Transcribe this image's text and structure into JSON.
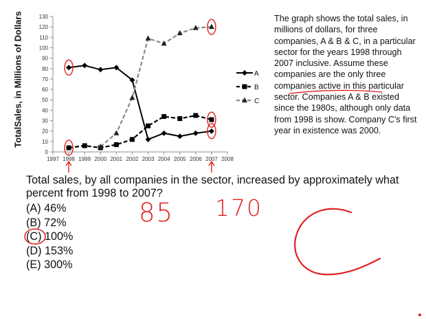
{
  "chart_data": {
    "type": "line",
    "title": "",
    "ylabel": "TotalSales, in Millions of Dollars",
    "xlabel": "",
    "xlim": [
      1997,
      2008
    ],
    "ylim": [
      0,
      130
    ],
    "y_ticks": [
      "0",
      "10",
      "20",
      "30",
      "40",
      "50",
      "60",
      "70",
      "80",
      "90",
      "100",
      "110",
      "120",
      "130"
    ],
    "x_ticks": [
      "1997",
      "1998",
      "1999",
      "2000",
      "2001",
      "2002",
      "2003",
      "2004",
      "2005",
      "2006",
      "2007",
      "2008"
    ],
    "grid": false,
    "legend_placement": "right",
    "series": [
      {
        "name": "A",
        "style": "solid",
        "marker": "diamond",
        "x": [
          1998,
          1999,
          2000,
          2001,
          2002,
          2003,
          2004,
          2005,
          2006,
          2007
        ],
        "values": [
          81,
          83,
          79,
          81,
          69,
          12,
          18,
          15,
          18,
          20
        ]
      },
      {
        "name": "B",
        "style": "dashed",
        "marker": "square",
        "x": [
          1998,
          1999,
          2000,
          2001,
          2002,
          2003,
          2004,
          2005,
          2006,
          2007
        ],
        "values": [
          4,
          6,
          4,
          7,
          12,
          25,
          34,
          32,
          35,
          31
        ]
      },
      {
        "name": "C",
        "style": "dashed-gray",
        "marker": "triangle",
        "x": [
          2000,
          2001,
          2002,
          2003,
          2004,
          2005,
          2006,
          2007
        ],
        "values": [
          5,
          18,
          52,
          109,
          104,
          114,
          119,
          120
        ]
      }
    ],
    "colors": {
      "A": "#000000",
      "B": "#000000",
      "C": "#8a8a8a",
      "annotation": "#e02020"
    }
  },
  "description": "The graph shows the total sales, in millions of dollars, for three companies, A & B & C, in a particular sector for the years 1998 through 2007 inclusive. Assume these companies are the only three companies active in this particular sector. Companies A & B existed since the 1980s, although only data from 1998 is show.  Company C's first year in existence was 2000.",
  "question": "Total sales, by all companies in the sector, increased by approximately what percent from 1998 to 2007?",
  "choices": [
    "(A) 46%",
    "(B) 72%",
    "(C) 100%",
    "(D) 153%",
    "(E) 300%"
  ],
  "handwriting": {
    "note_1998": "85",
    "note_2007": "170",
    "answer_letter": "C"
  }
}
